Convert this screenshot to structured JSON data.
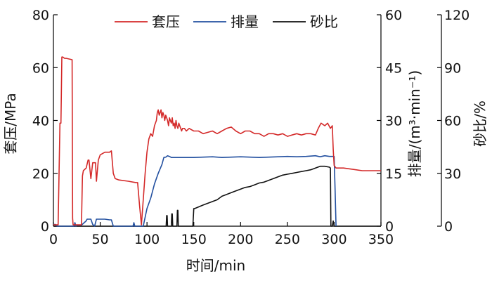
{
  "chart_data": {
    "type": "line",
    "xlabel": "时间/min",
    "xlim": [
      0,
      350
    ],
    "xticks": [
      0,
      50,
      100,
      150,
      200,
      250,
      300,
      350
    ],
    "axes": {
      "left": {
        "label": "套压/MPa",
        "lim": [
          0,
          80
        ],
        "ticks": [
          0,
          20,
          40,
          60,
          80
        ]
      },
      "right1": {
        "label": "排量/(m³·min⁻¹)",
        "lim": [
          0,
          60
        ],
        "ticks": [
          0,
          15,
          30,
          45,
          60
        ]
      },
      "right2": {
        "label": "砂比/%",
        "lim": [
          0,
          120
        ],
        "ticks": [
          0,
          30,
          60,
          90,
          120
        ]
      }
    },
    "legend": {
      "position": "top",
      "entries": [
        "套压",
        "排量",
        "砂比"
      ]
    },
    "series": [
      {
        "name": "套压",
        "axis": "left",
        "color": "#d42a2a",
        "x": [
          0,
          5,
          7,
          8,
          9,
          10,
          12,
          14,
          20,
          20.5,
          21,
          30,
          31,
          32,
          35,
          37,
          38,
          40,
          42,
          45,
          46,
          48,
          50,
          55,
          60,
          62,
          64,
          66,
          70,
          80,
          88,
          90,
          92,
          94,
          96,
          98,
          100,
          102,
          104,
          106,
          108,
          110,
          111,
          112,
          113,
          114,
          115,
          116,
          117,
          118,
          119,
          120,
          121,
          122,
          123,
          124,
          125,
          126,
          127,
          128,
          129,
          130,
          131,
          132,
          133,
          134,
          135,
          136,
          137,
          138,
          140,
          142,
          145,
          150,
          155,
          160,
          165,
          170,
          175,
          180,
          185,
          190,
          195,
          200,
          205,
          210,
          215,
          220,
          225,
          230,
          235,
          240,
          245,
          250,
          255,
          260,
          265,
          270,
          275,
          280,
          283,
          286,
          290,
          293,
          296,
          298,
          299,
          300,
          302,
          305,
          310,
          320,
          330,
          340,
          350
        ],
        "y": [
          0.5,
          0.5,
          39,
          39,
          64,
          64,
          63.5,
          63.5,
          63,
          3,
          0.5,
          0.5,
          19,
          21,
          22,
          25,
          25,
          18,
          24,
          24,
          17,
          25,
          27,
          28,
          28,
          28.5,
          20,
          18,
          17.5,
          17,
          16.5,
          16.5,
          8,
          0.5,
          10,
          20,
          28,
          33,
          35,
          34,
          38,
          40,
          43,
          44,
          42,
          43,
          44,
          41,
          43,
          42,
          40,
          42,
          41,
          40,
          38,
          41,
          40,
          39,
          41,
          38,
          39,
          37,
          40,
          38,
          37,
          39,
          38,
          37,
          36,
          37,
          37,
          36,
          37,
          36,
          36,
          35,
          35.5,
          36,
          35,
          36,
          37,
          37.5,
          36,
          35,
          36,
          36,
          35,
          35,
          34,
          35,
          35,
          34.5,
          35,
          34,
          34.5,
          35,
          34.5,
          35,
          35,
          34.5,
          37,
          39,
          38,
          39,
          37,
          38,
          29,
          23,
          22,
          22,
          22,
          21.5,
          21,
          21,
          21
        ],
        "note": ""
      },
      {
        "name": "排量",
        "axis": "right1",
        "color": "#2350a0",
        "x": [
          0,
          2,
          3,
          4,
          22,
          23,
          24,
          25,
          30,
          35,
          36,
          40,
          42,
          44,
          46,
          48,
          50,
          55,
          60,
          62,
          64,
          70,
          80,
          85,
          86,
          87,
          94,
          96,
          100,
          104,
          108,
          112,
          116,
          118,
          120,
          122,
          124,
          126,
          130,
          140,
          150,
          160,
          170,
          180,
          190,
          200,
          210,
          220,
          230,
          240,
          250,
          260,
          270,
          280,
          285,
          290,
          295,
          298,
          300,
          301,
          302
        ],
        "y": [
          0.5,
          0.5,
          0.3,
          0,
          0,
          1,
          0,
          0.3,
          0.3,
          1.5,
          2,
          2,
          0.5,
          0,
          2,
          2,
          2,
          2,
          1.8,
          1.8,
          0,
          0,
          0,
          0,
          1,
          0,
          0,
          0,
          5,
          8,
          12,
          15,
          17.5,
          19.5,
          19.6,
          20,
          19.8,
          19.5,
          19.5,
          19.5,
          19.5,
          19.6,
          19.7,
          19.5,
          19.6,
          19.7,
          19.6,
          19.5,
          19.6,
          19.7,
          19.8,
          19.7,
          19.8,
          20,
          19.7,
          20,
          19.8,
          19.8,
          19.8,
          10,
          0
        ]
      },
      {
        "name": "砂比",
        "axis": "right2",
        "color": "#111111",
        "x": [
          0,
          120,
          120.5,
          121,
          121.5,
          122,
          126,
          126.5,
          127,
          127.5,
          128,
          132,
          132.5,
          133,
          133.5,
          134,
          149,
          150,
          150.5,
          151,
          160,
          170,
          175,
          180,
          185,
          190,
          195,
          200,
          205,
          210,
          215,
          220,
          225,
          230,
          235,
          240,
          245,
          250,
          255,
          260,
          265,
          270,
          275,
          280,
          285,
          290,
          295,
          296,
          296.5,
          297,
          298,
          299,
          300,
          350
        ],
        "y": [
          0,
          0,
          0,
          6,
          6,
          0,
          0,
          7,
          7,
          0,
          0,
          0,
          9,
          9,
          0,
          0,
          0,
          10,
          10,
          10,
          12,
          14,
          15,
          17,
          18,
          19,
          20,
          21,
          22,
          22.5,
          23.5,
          24.5,
          25,
          26,
          27,
          28,
          29,
          29.5,
          30,
          30.5,
          31,
          31.5,
          32,
          33,
          34,
          34,
          33.5,
          33,
          0,
          0,
          0,
          3,
          0,
          0
        ]
      }
    ]
  }
}
